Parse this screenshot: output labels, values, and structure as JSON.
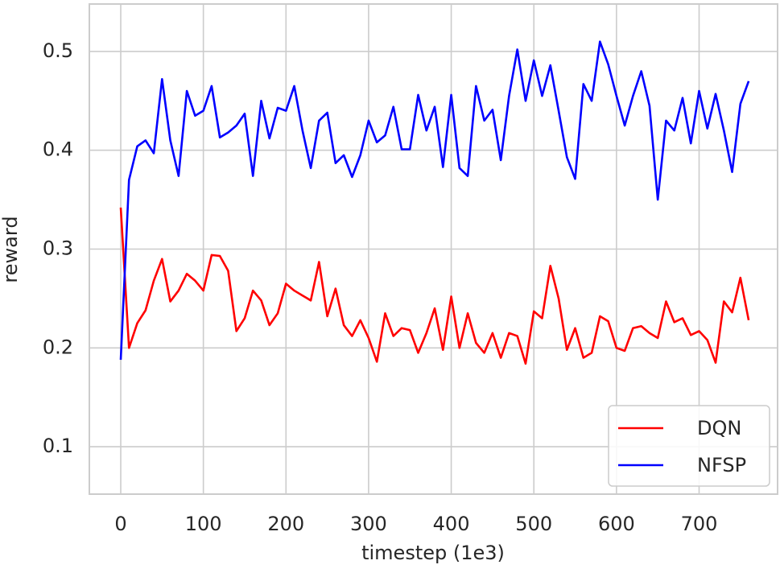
{
  "chart_data": {
    "type": "line",
    "xlabel": "timestep (1e3)",
    "ylabel": "reward",
    "x": [
      0,
      10,
      20,
      30,
      40,
      50,
      60,
      70,
      80,
      90,
      100,
      110,
      120,
      130,
      140,
      150,
      160,
      170,
      180,
      190,
      200,
      210,
      220,
      230,
      240,
      250,
      260,
      270,
      280,
      290,
      300,
      310,
      320,
      330,
      340,
      350,
      360,
      370,
      380,
      390,
      400,
      410,
      420,
      430,
      440,
      450,
      460,
      470,
      480,
      490,
      500,
      510,
      520,
      530,
      540,
      550,
      560,
      570,
      580,
      590,
      600,
      610,
      620,
      630,
      640,
      650,
      660,
      670,
      680,
      690,
      700,
      710,
      720,
      730,
      740,
      750,
      760
    ],
    "series": [
      {
        "name": "DQN",
        "color": "#ff0000",
        "values": [
          0.342,
          0.2,
          0.225,
          0.238,
          0.268,
          0.29,
          0.247,
          0.258,
          0.275,
          0.268,
          0.258,
          0.294,
          0.293,
          0.278,
          0.217,
          0.23,
          0.258,
          0.248,
          0.223,
          0.235,
          0.265,
          0.258,
          0.253,
          0.248,
          0.287,
          0.232,
          0.26,
          0.223,
          0.212,
          0.228,
          0.21,
          0.186,
          0.235,
          0.212,
          0.22,
          0.218,
          0.195,
          0.215,
          0.24,
          0.198,
          0.252,
          0.2,
          0.235,
          0.205,
          0.195,
          0.215,
          0.19,
          0.215,
          0.212,
          0.184,
          0.237,
          0.23,
          0.283,
          0.25,
          0.198,
          0.22,
          0.19,
          0.195,
          0.232,
          0.227,
          0.2,
          0.197,
          0.22,
          0.222,
          0.215,
          0.21,
          0.247,
          0.226,
          0.23,
          0.213,
          0.217,
          0.208,
          0.185,
          0.247,
          0.236,
          0.271,
          0.228
        ]
      },
      {
        "name": "NFSP",
        "color": "#0000ff",
        "values": [
          0.188,
          0.37,
          0.404,
          0.41,
          0.397,
          0.472,
          0.41,
          0.374,
          0.46,
          0.435,
          0.44,
          0.465,
          0.413,
          0.418,
          0.425,
          0.437,
          0.374,
          0.45,
          0.412,
          0.443,
          0.44,
          0.465,
          0.42,
          0.382,
          0.43,
          0.438,
          0.387,
          0.395,
          0.373,
          0.395,
          0.43,
          0.408,
          0.415,
          0.444,
          0.401,
          0.401,
          0.456,
          0.42,
          0.444,
          0.383,
          0.456,
          0.382,
          0.374,
          0.465,
          0.43,
          0.441,
          0.39,
          0.455,
          0.502,
          0.45,
          0.491,
          0.455,
          0.486,
          0.44,
          0.393,
          0.371,
          0.467,
          0.45,
          0.51,
          0.487,
          0.455,
          0.425,
          0.455,
          0.48,
          0.445,
          0.35,
          0.43,
          0.42,
          0.453,
          0.407,
          0.46,
          0.422,
          0.457,
          0.42,
          0.378,
          0.447,
          0.47
        ]
      }
    ],
    "xlim": [
      -38,
      795
    ],
    "ylim": [
      0.052,
      0.548
    ],
    "xticks": [
      0,
      100,
      200,
      300,
      400,
      500,
      600,
      700
    ],
    "yticks": [
      0.1,
      0.2,
      0.3,
      0.4,
      0.5
    ],
    "grid": true,
    "legend": "lower right"
  }
}
